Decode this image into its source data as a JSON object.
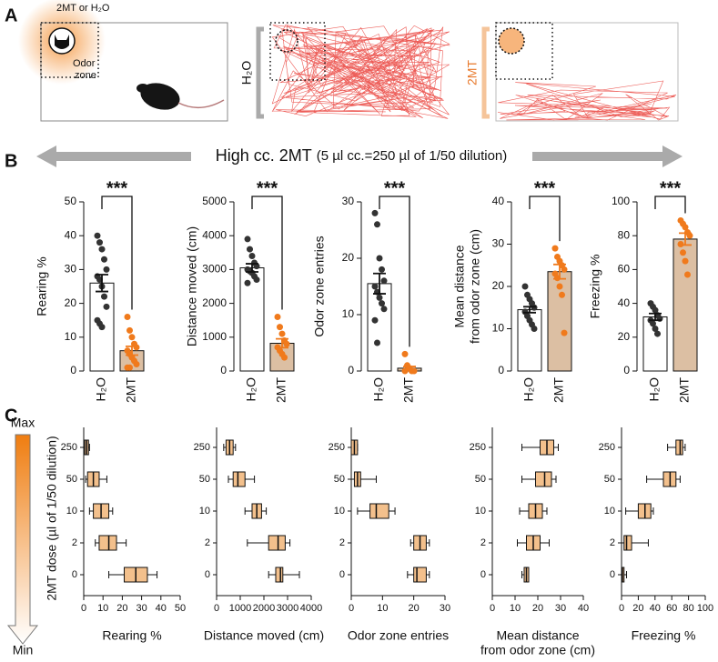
{
  "panels": [
    "A",
    "B",
    "C"
  ],
  "panel_a": {
    "odor_label": "2MT or H₂O",
    "zone_label": [
      "Odor",
      "zone"
    ],
    "h2o_label": "H₂O",
    "mt_label": "2MT"
  },
  "banner": {
    "main": "High cc. 2MT",
    "note": "(5 µl cc.=250 µl of 1/50 dilution)"
  },
  "dose_axis": {
    "label": "2MT dose (µl of 1/50 dilution)",
    "max": "Max",
    "min": "Min"
  },
  "chart_data": [
    {
      "type": "bar",
      "ylabel": [
        "Rearing %"
      ],
      "categories": [
        "H₂O",
        "2MT"
      ],
      "values": [
        26,
        6
      ],
      "errors": [
        2.5,
        1.3
      ],
      "colors": [
        "#ffffff",
        "#dcbfa3"
      ],
      "point_colors": [
        "#333333",
        "#f07a1c"
      ],
      "points": [
        [
          40,
          38,
          36,
          33,
          30,
          28,
          27,
          25,
          22,
          19,
          15,
          14,
          13
        ],
        [
          16,
          12,
          10,
          8,
          7,
          6,
          5,
          4,
          3,
          2,
          1,
          1
        ]
      ],
      "ylim": [
        0,
        50
      ],
      "yticks": [
        0,
        10,
        20,
        30,
        40,
        50
      ],
      "annotation": "***"
    },
    {
      "type": "bar",
      "ylabel": [
        "Distance moved (cm)"
      ],
      "categories": [
        "H₂O",
        "2MT"
      ],
      "values": [
        3050,
        820
      ],
      "errors": [
        120,
        130
      ],
      "colors": [
        "#ffffff",
        "#dcbfa3"
      ],
      "point_colors": [
        "#333333",
        "#f07a1c"
      ],
      "points": [
        [
          3900,
          3600,
          3400,
          3200,
          3100,
          3000,
          2950,
          2900,
          2800,
          2700,
          2600
        ],
        [
          1600,
          1300,
          1100,
          900,
          800,
          700,
          600,
          500,
          400
        ]
      ],
      "ylim": [
        0,
        5000
      ],
      "yticks": [
        0,
        1000,
        2000,
        3000,
        4000,
        5000
      ],
      "annotation": "***"
    },
    {
      "type": "bar",
      "ylabel": [
        "Odor zone entries"
      ],
      "categories": [
        "H₂O",
        "2MT"
      ],
      "values": [
        15.5,
        0.5
      ],
      "errors": [
        1.8,
        0.3
      ],
      "colors": [
        "#ffffff",
        "#dcbfa3"
      ],
      "point_colors": [
        "#333333",
        "#f07a1c"
      ],
      "points": [
        [
          28,
          26,
          20,
          18,
          16,
          15,
          14,
          13,
          12,
          11,
          9,
          5
        ],
        [
          3,
          1,
          0.5,
          0,
          0,
          0
        ]
      ],
      "ylim": [
        0,
        30
      ],
      "yticks": [
        0,
        10,
        20,
        30
      ],
      "annotation": "***"
    },
    {
      "type": "bar",
      "ylabel": [
        "Mean distance",
        "from odor zone (cm)"
      ],
      "categories": [
        "H₂O",
        "2MT"
      ],
      "values": [
        14.5,
        23.5
      ],
      "errors": [
        0.7,
        1.7
      ],
      "colors": [
        "#ffffff",
        "#dcbfa3"
      ],
      "point_colors": [
        "#333333",
        "#f07a1c"
      ],
      "points": [
        [
          20,
          18,
          17,
          16,
          15,
          14,
          13,
          12,
          11,
          10
        ],
        [
          29,
          27,
          26,
          25,
          24,
          23,
          22,
          20,
          18,
          9
        ]
      ],
      "ylim": [
        0,
        40
      ],
      "yticks": [
        0,
        10,
        20,
        30,
        40
      ],
      "annotation": "***"
    },
    {
      "type": "bar",
      "ylabel": [
        "Freezing %"
      ],
      "categories": [
        "H₂O",
        "2MT"
      ],
      "values": [
        32,
        78
      ],
      "errors": [
        2,
        3.5
      ],
      "colors": [
        "#ffffff",
        "#dcbfa3"
      ],
      "point_colors": [
        "#333333",
        "#f07a1c"
      ],
      "points": [
        [
          40,
          38,
          36,
          33,
          31,
          30,
          28,
          25,
          22
        ],
        [
          89,
          87,
          85,
          82,
          80,
          75,
          70,
          65,
          57
        ]
      ],
      "ylim": [
        0,
        100
      ],
      "yticks": [
        0,
        20,
        40,
        60,
        80,
        100
      ],
      "annotation": "***"
    },
    {
      "type": "box",
      "xlabel": [
        "Rearing %"
      ],
      "categories": [
        "250",
        "50",
        "10",
        "2",
        "0"
      ],
      "color": "#f3c08c",
      "boxes": [
        {
          "min": 0,
          "q1": 0.5,
          "median": 1.5,
          "q3": 2.5,
          "max": 3
        },
        {
          "min": 1,
          "q1": 2,
          "median": 5,
          "q3": 8,
          "max": 12
        },
        {
          "min": 3,
          "q1": 5,
          "median": 9,
          "q3": 13,
          "max": 15
        },
        {
          "min": 6,
          "q1": 8,
          "median": 13,
          "q3": 17,
          "max": 22
        },
        {
          "min": 13,
          "q1": 21,
          "median": 27,
          "q3": 33,
          "max": 38
        }
      ],
      "xlim": [
        0,
        50
      ],
      "xticks": [
        0,
        10,
        20,
        30,
        40,
        50
      ]
    },
    {
      "type": "box",
      "xlabel": [
        "Distance moved (cm)"
      ],
      "categories": [
        "250",
        "50",
        "10",
        "2",
        "0"
      ],
      "color": "#f3c08c",
      "boxes": [
        {
          "min": 300,
          "q1": 400,
          "median": 550,
          "q3": 700,
          "max": 800
        },
        {
          "min": 500,
          "q1": 700,
          "median": 900,
          "q3": 1200,
          "max": 1600
        },
        {
          "min": 1200,
          "q1": 1500,
          "median": 1700,
          "q3": 1900,
          "max": 2100
        },
        {
          "min": 1300,
          "q1": 2200,
          "median": 2600,
          "q3": 2900,
          "max": 3100
        },
        {
          "min": 2200,
          "q1": 2500,
          "median": 2700,
          "q3": 2800,
          "max": 3500
        }
      ],
      "xlim": [
        0,
        4000
      ],
      "xticks": [
        0,
        1000,
        2000,
        3000,
        4000
      ]
    },
    {
      "type": "box",
      "xlabel": [
        "Odor zone entries"
      ],
      "categories": [
        "250",
        "50",
        "10",
        "2",
        "0"
      ],
      "color": "#f3c08c",
      "boxes": [
        {
          "min": 0,
          "q1": 0,
          "median": 1,
          "q3": 2,
          "max": 2
        },
        {
          "min": 0,
          "q1": 1,
          "median": 2,
          "q3": 3,
          "max": 8
        },
        {
          "min": 2,
          "q1": 6,
          "median": 8,
          "q3": 12,
          "max": 14
        },
        {
          "min": 19,
          "q1": 20,
          "median": 22,
          "q3": 24,
          "max": 25
        },
        {
          "min": 18,
          "q1": 20,
          "median": 21,
          "q3": 24,
          "max": 25
        }
      ],
      "xlim": [
        0,
        30
      ],
      "xticks": [
        0,
        10,
        20,
        30
      ]
    },
    {
      "type": "box",
      "xlabel": [
        "Mean distance",
        "from odor zone (cm)"
      ],
      "categories": [
        "250",
        "50",
        "10",
        "2",
        "0"
      ],
      "color": "#f3c08c",
      "boxes": [
        {
          "min": 13,
          "q1": 21,
          "median": 24,
          "q3": 27,
          "max": 29
        },
        {
          "min": 13,
          "q1": 19,
          "median": 23,
          "q3": 26,
          "max": 28
        },
        {
          "min": 12,
          "q1": 16,
          "median": 19,
          "q3": 22,
          "max": 24
        },
        {
          "min": 11,
          "q1": 15,
          "median": 18,
          "q3": 21,
          "max": 25
        },
        {
          "min": 13,
          "q1": 14,
          "median": 15,
          "q3": 16,
          "max": 16
        }
      ],
      "xlim": [
        0,
        40
      ],
      "xticks": [
        0,
        10,
        20,
        30,
        40
      ]
    },
    {
      "type": "box",
      "xlabel": [
        "Freezing %"
      ],
      "categories": [
        "250",
        "50",
        "10",
        "2",
        "0"
      ],
      "color": "#f3c08c",
      "boxes": [
        {
          "min": 55,
          "q1": 65,
          "median": 70,
          "q3": 73,
          "max": 76
        },
        {
          "min": 30,
          "q1": 50,
          "median": 58,
          "q3": 65,
          "max": 70
        },
        {
          "min": 5,
          "q1": 20,
          "median": 28,
          "q3": 35,
          "max": 38
        },
        {
          "min": 0,
          "q1": 3,
          "median": 6,
          "q3": 12,
          "max": 32
        },
        {
          "min": 0,
          "q1": 0,
          "median": 1,
          "q3": 3,
          "max": 6
        }
      ],
      "xlim": [
        0,
        100
      ],
      "xticks": [
        0,
        20,
        40,
        60,
        80,
        100
      ]
    }
  ]
}
